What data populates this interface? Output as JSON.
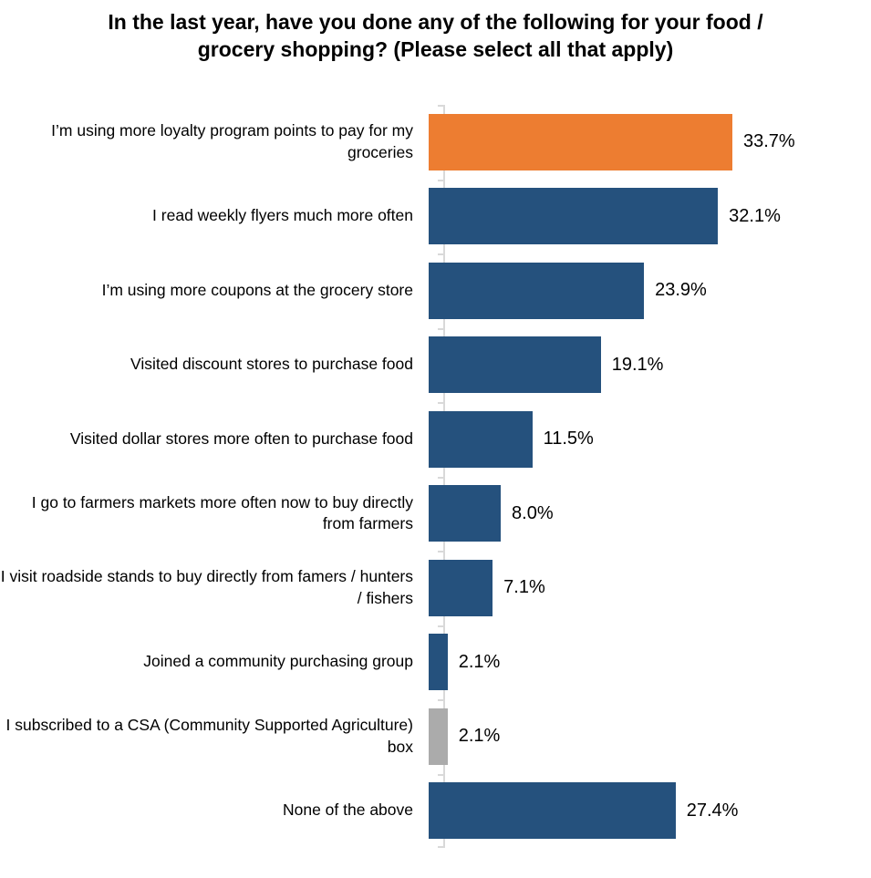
{
  "title": "In the last year, have you done any of the following for your food / grocery shopping? (Please select all that apply)",
  "colors": {
    "highlight_orange": "#ED7D31",
    "primary_blue": "#25517D",
    "muted_gray": "#ABABAB",
    "axis_gray": "#D9D9D9",
    "text": "#000000"
  },
  "chart_data": {
    "type": "bar",
    "orientation": "horizontal",
    "title": "In the last year, have you done any of the following for your food / grocery shopping? (Please select all that apply)",
    "xlabel": "",
    "ylabel": "",
    "xlim": [
      0,
      40
    ],
    "grid": false,
    "legend_position": "none",
    "categories": [
      "I’m using more loyalty program points to pay for my groceries",
      "I read weekly flyers much more often",
      "I’m using more coupons at the grocery store",
      "Visited discount stores to purchase food",
      "Visited dollar stores more often to purchase food",
      "I go to farmers markets more often now to buy directly from farmers",
      "I visit roadside stands to buy directly from famers / hunters / fishers",
      "Joined a community purchasing group",
      "I subscribed to a CSA (Community Supported Agriculture) box",
      "None of the above"
    ],
    "values": [
      33.7,
      32.1,
      23.9,
      19.1,
      11.5,
      8.0,
      7.1,
      2.1,
      2.1,
      27.4
    ],
    "value_labels": [
      "33.7%",
      "32.1%",
      "23.9%",
      "19.1%",
      "11.5%",
      "8.0%",
      "7.1%",
      "2.1%",
      "2.1%",
      "27.4%"
    ],
    "bar_color_keys": [
      "highlight_orange",
      "primary_blue",
      "primary_blue",
      "primary_blue",
      "primary_blue",
      "primary_blue",
      "primary_blue",
      "primary_blue",
      "muted_gray",
      "primary_blue"
    ]
  }
}
